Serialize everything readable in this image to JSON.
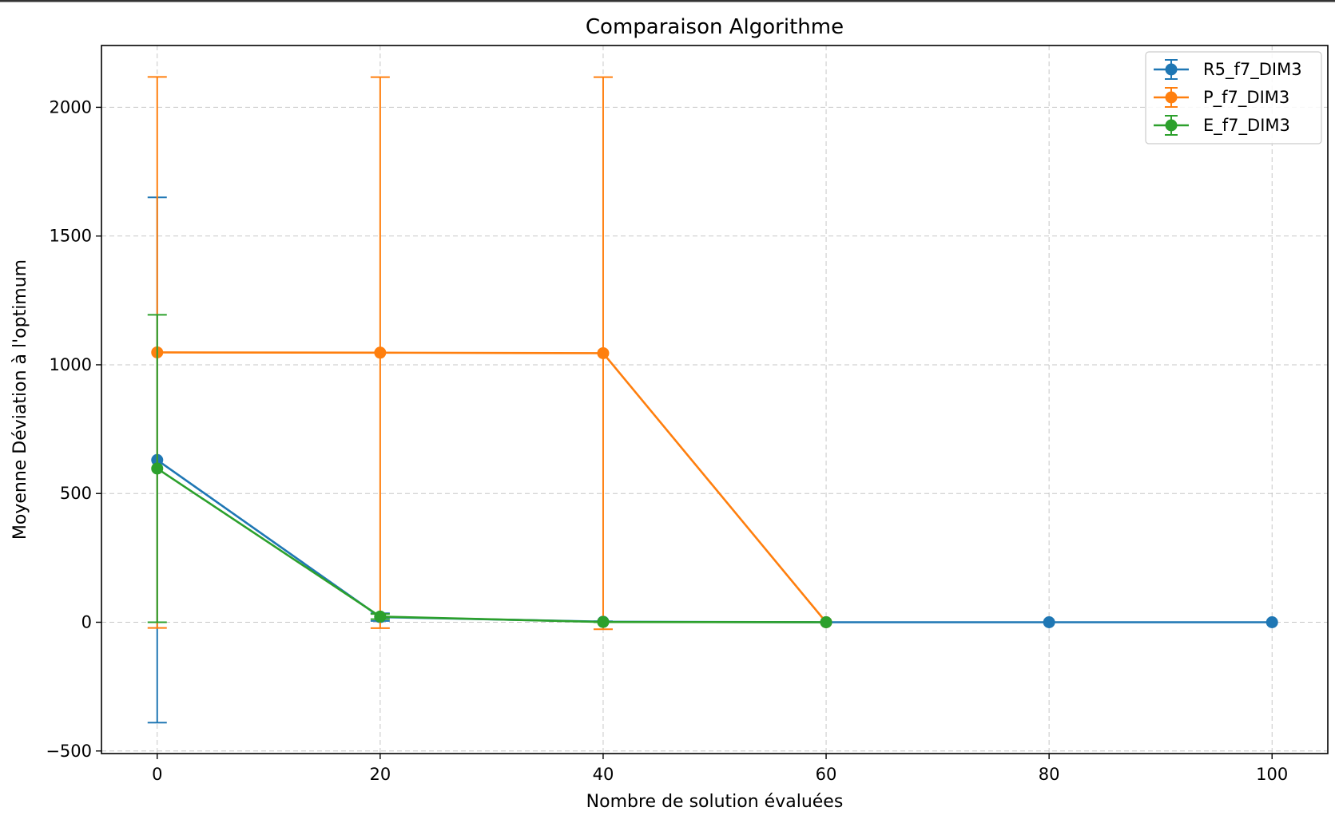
{
  "chart_data": {
    "type": "line",
    "title": "Comparaison Algorithme",
    "xlabel": "Nombre de solution évaluées",
    "ylabel": "Moyenne Déviation à l'optimum",
    "xlim": [
      -5,
      105
    ],
    "ylim": [
      -510,
      2240
    ],
    "xticks": [
      0,
      20,
      40,
      60,
      80,
      100
    ],
    "yticks": [
      -500,
      0,
      500,
      1000,
      1500,
      2000
    ],
    "xtick_labels": [
      "0",
      "20",
      "40",
      "60",
      "80",
      "100"
    ],
    "ytick_labels": [
      "−500",
      "0",
      "500",
      "1000",
      "1500",
      "2000"
    ],
    "grid": true,
    "legend_position": "top-right",
    "series": [
      {
        "name": "R5_f7_DIM3",
        "color": "#1f77b4",
        "x": [
          0,
          20,
          40,
          60,
          80,
          100
        ],
        "y": [
          630,
          20,
          2,
          0,
          0,
          0
        ],
        "yerr": [
          1020,
          15,
          2,
          0,
          0,
          0
        ]
      },
      {
        "name": "P_f7_DIM3",
        "color": "#ff7f0e",
        "x": [
          0,
          20,
          40,
          60
        ],
        "y": [
          1048,
          1047,
          1045,
          0
        ],
        "yerr": [
          1070,
          1070,
          1072,
          0
        ]
      },
      {
        "name": "E_f7_DIM3",
        "color": "#2ca02c",
        "x": [
          0,
          20,
          40,
          60
        ],
        "y": [
          597,
          22,
          1,
          0
        ],
        "yerr": [
          597,
          10,
          1,
          0
        ]
      }
    ]
  }
}
